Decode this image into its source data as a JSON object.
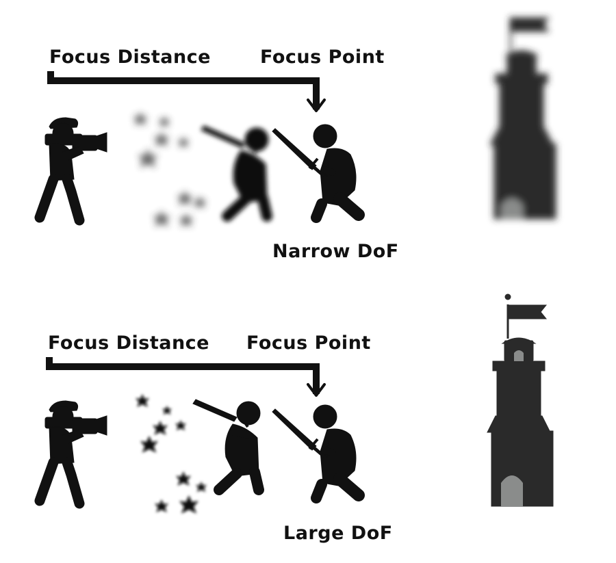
{
  "top_panel": {
    "focus_distance_label": "Focus Distance",
    "focus_point_label": "Focus Point",
    "dof_label": "Narrow DoF"
  },
  "bottom_panel": {
    "focus_distance_label": "Focus Distance",
    "focus_point_label": "Focus Point",
    "dof_label": "Large DoF"
  },
  "colors": {
    "silhouette": "#111111",
    "tower": "#2a2a2a",
    "tower_door": "#8a8c8b",
    "background": "#ffffff"
  }
}
